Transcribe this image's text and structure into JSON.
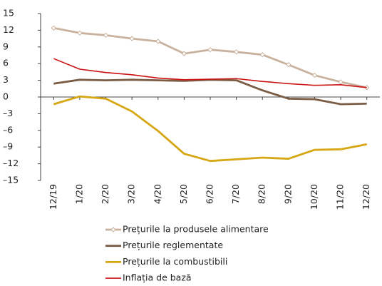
{
  "chart_data": {
    "type": "line",
    "categories": [
      "12/19",
      "1/20",
      "2/20",
      "3/20",
      "4/20",
      "5/20",
      "6/20",
      "7/20",
      "8/20",
      "9/20",
      "10/20",
      "11/20",
      "12/20"
    ],
    "series": [
      {
        "name": "Prețurile la produsele alimentare",
        "color": "#c9b29d",
        "markers": true,
        "values": [
          12.4,
          11.5,
          11.1,
          10.5,
          10.0,
          7.8,
          8.5,
          8.1,
          7.6,
          5.8,
          3.9,
          2.7,
          1.7
        ]
      },
      {
        "name": "Prețurile reglementate",
        "color": "#7b5d46",
        "values": [
          2.4,
          3.1,
          3.0,
          3.1,
          3.0,
          2.9,
          3.1,
          3.0,
          1.2,
          -0.3,
          -0.4,
          -1.3,
          -1.2
        ]
      },
      {
        "name": "Prețurile la combustibili",
        "color": "#d6a713",
        "values": [
          -1.3,
          0.1,
          -0.3,
          -2.6,
          -6.1,
          -10.2,
          -11.5,
          -11.2,
          -10.9,
          -11.1,
          -9.5,
          -9.4,
          -8.5
        ]
      },
      {
        "name": "Inflația de bază",
        "color": "#cc1111",
        "values": [
          6.9,
          5.0,
          4.4,
          4.0,
          3.4,
          3.1,
          3.2,
          3.3,
          2.8,
          2.4,
          2.1,
          2.2,
          1.7
        ]
      }
    ],
    "ylim": [
      -15,
      15
    ],
    "yticks": [
      {
        "value": -15,
        "label": "–15"
      },
      {
        "value": -12,
        "label": "–12"
      },
      {
        "value": -9,
        "label": "–9"
      },
      {
        "value": -6,
        "label": "–6"
      },
      {
        "value": -3,
        "label": "–3"
      },
      0,
      3,
      6,
      9,
      12,
      15
    ],
    "grid": false,
    "legend": "bottom"
  }
}
